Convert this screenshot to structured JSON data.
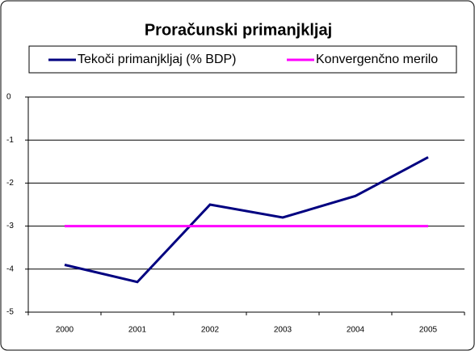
{
  "chart_data": {
    "type": "line",
    "title": "Proračunski primanjkljaj",
    "categories": [
      "2000",
      "2001",
      "2002",
      "2003",
      "2004",
      "2005"
    ],
    "series": [
      {
        "name": "Tekoči primanjkljaj (% BDP)",
        "color": "#000080",
        "values": [
          -3.9,
          -4.3,
          -2.5,
          -2.8,
          -2.3,
          -1.4
        ]
      },
      {
        "name": "Konvergenčno merilo",
        "color": "#ff00ff",
        "values": [
          -3,
          -3,
          -3,
          -3,
          -3,
          -3
        ]
      }
    ],
    "ylim": [
      -5,
      0
    ],
    "yticks": [
      0,
      -1,
      -2,
      -3,
      -4,
      -5
    ],
    "grid": true,
    "legend": "top"
  }
}
